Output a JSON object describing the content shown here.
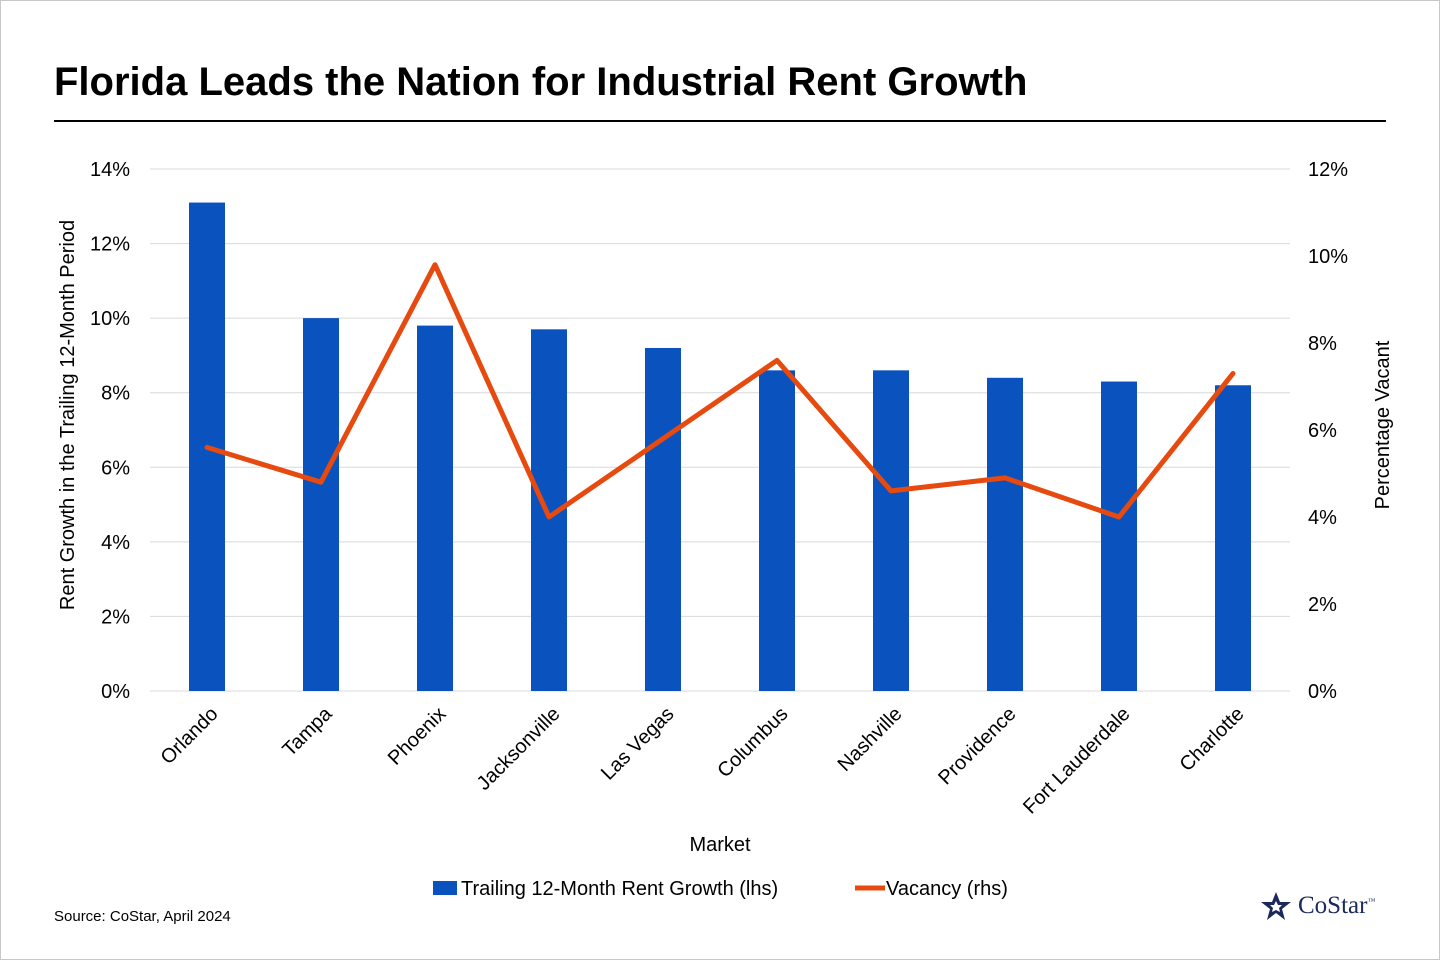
{
  "title": "Florida Leads the Nation for Industrial Rent Growth",
  "source": "Source: CoStar, April 2024",
  "logo": {
    "text": "CoStar",
    "tm": "™"
  },
  "colors": {
    "bar": "#0a52be",
    "line": "#e64a0f",
    "grid": "#d9d9d9",
    "text": "#000000"
  },
  "chart_data": {
    "type": "bar",
    "categories": [
      "Orlando",
      "Tampa",
      "Phoenix",
      "Jacksonville",
      "Las Vegas",
      "Columbus",
      "Nashville",
      "Providence",
      "Fort Lauderdale",
      "Charlotte"
    ],
    "series": [
      {
        "name": "Trailing 12-Month Rent Growth (lhs)",
        "type": "bar",
        "axis": "left",
        "values": [
          13.1,
          10.0,
          9.8,
          9.7,
          9.2,
          8.6,
          8.6,
          8.4,
          8.3,
          8.2
        ]
      },
      {
        "name": "Vacancy (rhs)",
        "type": "line",
        "axis": "right",
        "values": [
          5.6,
          4.8,
          9.8,
          4.0,
          5.8,
          7.6,
          4.6,
          4.9,
          4.0,
          7.3
        ]
      }
    ],
    "xlabel": "Market",
    "ylabel": "Rent Growth in the Trailing 12-Month Period",
    "y2label": "Percentage Vacant",
    "ylim": [
      0,
      14
    ],
    "y2lim": [
      0,
      12
    ],
    "yticks": [
      "0%",
      "2%",
      "4%",
      "6%",
      "8%",
      "10%",
      "12%",
      "14%"
    ],
    "y2ticks": [
      "0%",
      "2%",
      "4%",
      "6%",
      "8%",
      "10%",
      "12%"
    ],
    "grid": true,
    "legend": "bottom"
  }
}
